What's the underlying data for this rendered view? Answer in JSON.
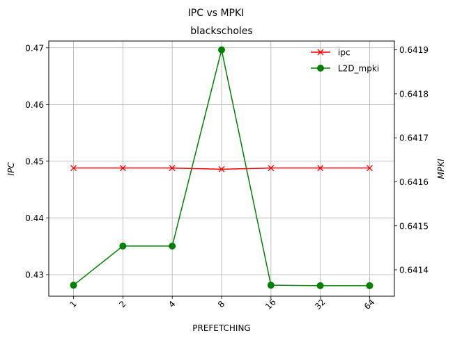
{
  "chart_data": {
    "type": "line",
    "suptitle": "IPC vs MPKI",
    "title": "blackscholes",
    "xlabel": "PREFETCHING",
    "ylabel_left": "IPC",
    "ylabel_right": "MPKI",
    "categories": [
      "1",
      "2",
      "4",
      "8",
      "16",
      "32",
      "64"
    ],
    "grid": true,
    "legend_position": "top-right",
    "left_axis": {
      "ylim": [
        0.4262,
        0.4712
      ],
      "ticks": [
        0.43,
        0.44,
        0.45,
        0.46,
        0.47
      ],
      "tick_labels": [
        "0.43",
        "0.44",
        "0.45",
        "0.46",
        "0.47"
      ]
    },
    "right_axis": {
      "ylim": [
        0.64134,
        0.64192
      ],
      "ticks": [
        0.6414,
        0.6415,
        0.6416,
        0.6417,
        0.6418,
        0.6419
      ],
      "tick_labels": [
        "0.6414",
        "0.6415",
        "0.6416",
        "0.6417",
        "0.6418",
        "0.6419"
      ]
    },
    "series": [
      {
        "name": "ipc",
        "axis": "left",
        "color": "#ff0000",
        "marker": "x",
        "values": [
          0.4488,
          0.4488,
          0.4488,
          0.4486,
          0.4488,
          0.4488,
          0.4488
        ]
      },
      {
        "name": "L2D_mpki",
        "axis": "right",
        "color": "#008000",
        "marker": "o",
        "values": [
          0.641365,
          0.641454,
          0.641454,
          0.6419,
          0.641365,
          0.641364,
          0.641364
        ]
      }
    ]
  }
}
